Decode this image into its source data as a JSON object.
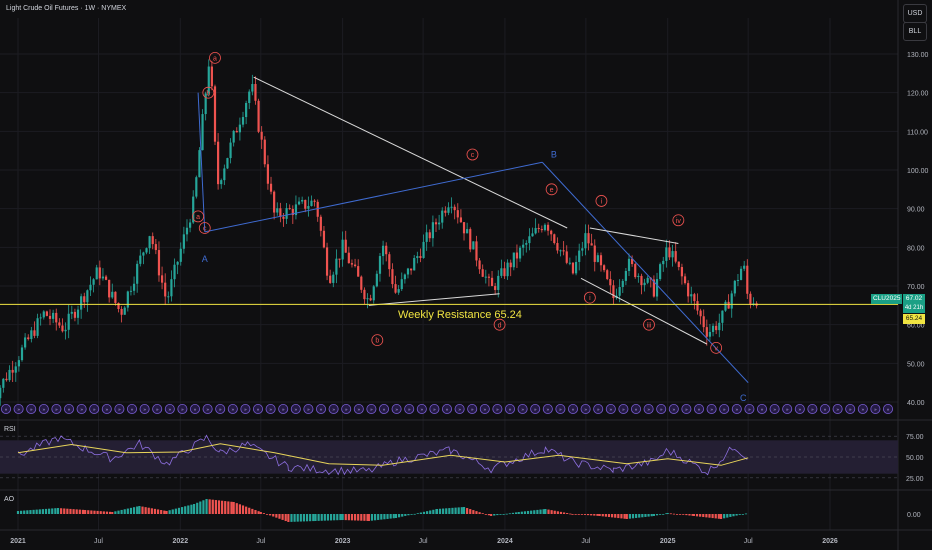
{
  "header": {
    "title": "Light Crude Oil Futures · 1W · NYMEX"
  },
  "controls": {
    "currency": "USD",
    "unit": "BLL"
  },
  "colors": {
    "background": "#0f0f11",
    "up": "#26a69a",
    "down": "#ef5350",
    "wave_blue": "#3f6bd1",
    "wave_white": "#d9d9d9",
    "resistance": "#f0e442",
    "rsi_line": "#8d6fe0",
    "rsi_ma": "#e8d55a",
    "rsi_band": "#241f33",
    "event_icon": "#7b5fd6",
    "price_tag": "#1aa085"
  },
  "price_tags": {
    "symbol": "CLU2025",
    "last_price": "67.02",
    "countdown": "4d 21h",
    "resistance": "65.24"
  },
  "annotation": {
    "resistance_label": "Weekly Resistance 65.24"
  },
  "chart_data": {
    "type": "candlestick",
    "title": "Light Crude Oil Futures · 1W · NYMEX",
    "ylim": [
      40,
      135
    ],
    "y_ticks": [
      "130.00",
      "120.00",
      "110.00",
      "100.00",
      "90.00",
      "80.00",
      "70.00",
      "60.00",
      "50.00",
      "40.00"
    ],
    "x_ticks": [
      "2021",
      "Jul",
      "2022",
      "Jul",
      "2023",
      "Jul",
      "2024",
      "Jul",
      "2025",
      "Jul",
      "2026"
    ],
    "x_tick_dates": [
      "2021-01",
      "2021-07",
      "2022-01",
      "2022-07",
      "2023-01",
      "2023-07",
      "2024-01",
      "2024-07",
      "2025-01",
      "2025-07",
      "2026-01"
    ],
    "price_path": [
      [
        "2020-11",
        40
      ],
      [
        "2021-03",
        63
      ],
      [
        "2021-04-15",
        59
      ],
      [
        "2021-07",
        74
      ],
      [
        "2021-08-20",
        63
      ],
      [
        "2021-10-25",
        84
      ],
      [
        "2021-12",
        66
      ],
      [
        "2022-02",
        92
      ],
      [
        "2022-03-08",
        130
      ],
      [
        "2022-03-25",
        96
      ],
      [
        "2022-06-10",
        122
      ],
      [
        "2022-08",
        88
      ],
      [
        "2022-11",
        92
      ],
      [
        "2022-12",
        72
      ],
      [
        "2023-01",
        80
      ],
      [
        "2023-03",
        66
      ],
      [
        "2023-04",
        81
      ],
      [
        "2023-05",
        68
      ],
      [
        "2023-09",
        93
      ],
      [
        "2023-12",
        69
      ],
      [
        "2024-01",
        74
      ],
      [
        "2024-04",
        87
      ],
      [
        "2024-06",
        73
      ],
      [
        "2024-07",
        83
      ],
      [
        "2024-09",
        67
      ],
      [
        "2024-10",
        76
      ],
      [
        "2024-12",
        69
      ],
      [
        "2025-01",
        80
      ],
      [
        "2025-04",
        58
      ],
      [
        "2025-05",
        61
      ],
      [
        "2025-06-20",
        76
      ],
      [
        "2025-07",
        66
      ],
      [
        "2025-07-25",
        67
      ]
    ],
    "wave_labels": [
      {
        "text": "a",
        "date": "2022-03-20",
        "price": 129,
        "color": "red"
      },
      {
        "text": "b",
        "date": "2022-03-05",
        "price": 120,
        "color": "red"
      },
      {
        "text": "a",
        "date": "2022-02-10",
        "price": 88,
        "color": "red"
      },
      {
        "text": "c",
        "date": "2022-02-25",
        "price": 85,
        "color": "red"
      },
      {
        "text": "A",
        "date": "2022-02-25",
        "price": 77,
        "color": "blue"
      },
      {
        "text": "c",
        "date": "2023-10-20",
        "price": 104,
        "color": "red"
      },
      {
        "text": "B",
        "date": "2024-04-20",
        "price": 104,
        "color": "blue"
      },
      {
        "text": "e",
        "date": "2024-04-15",
        "price": 95,
        "color": "red"
      },
      {
        "text": "i",
        "date": "2024-08-05",
        "price": 92,
        "color": "red"
      },
      {
        "text": "iv",
        "date": "2025-01-25",
        "price": 87,
        "color": "red"
      },
      {
        "text": "i",
        "date": "2024-07-10",
        "price": 67,
        "color": "red"
      },
      {
        "text": "iii",
        "date": "2024-11-20",
        "price": 60,
        "color": "red"
      },
      {
        "text": "b",
        "date": "2023-03-20",
        "price": 56,
        "color": "red"
      },
      {
        "text": "d",
        "date": "2023-12-20",
        "price": 60,
        "color": "red"
      },
      {
        "text": "v",
        "date": "2025-04-20",
        "price": 54,
        "color": "red"
      },
      {
        "text": "C",
        "date": "2025-06-20",
        "price": 41,
        "color": "blue"
      }
    ],
    "trendlines": [
      {
        "color": "white",
        "from": [
          "2022-06-15",
          124
        ],
        "to": [
          "2024-05-20",
          85
        ]
      },
      {
        "color": "blue",
        "from": [
          "2022-02-25",
          84
        ],
        "to": [
          "2024-03-25",
          102
        ]
      },
      {
        "color": "blue",
        "from": [
          "2022-02-25",
          84
        ],
        "to": [
          "2022-02-10",
          120
        ]
      },
      {
        "color": "blue",
        "from": [
          "2024-03-25",
          102
        ],
        "to": [
          "2025-07-01",
          45
        ]
      },
      {
        "color": "white",
        "from": [
          "2024-07-10",
          85
        ],
        "to": [
          "2025-01-25",
          81
        ]
      },
      {
        "color": "white",
        "from": [
          "2024-06-20",
          72
        ],
        "to": [
          "2025-03-30",
          55
        ]
      },
      {
        "color": "white",
        "from": [
          "2023-03-01",
          65
        ],
        "to": [
          "2023-12-20",
          68
        ]
      }
    ],
    "resistance_level": 65.24,
    "rsi": {
      "label": "RSI",
      "ylim": [
        20,
        80
      ],
      "levels": [
        {
          "label": "75.00",
          "value": 75
        },
        {
          "label": "50.00",
          "value": 50
        },
        {
          "label": "25.00",
          "value": 25
        }
      ],
      "bands": [
        70,
        30
      ],
      "path": [
        [
          "2021-01",
          52
        ],
        [
          "2021-04",
          73
        ],
        [
          "2021-06",
          60
        ],
        [
          "2021-08",
          48
        ],
        [
          "2021-10",
          66
        ],
        [
          "2021-12",
          42
        ],
        [
          "2022-03",
          73
        ],
        [
          "2022-04",
          55
        ],
        [
          "2022-06",
          65
        ],
        [
          "2022-09",
          38
        ],
        [
          "2022-12",
          34
        ],
        [
          "2023-03",
          33
        ],
        [
          "2023-05",
          45
        ],
        [
          "2023-09",
          58
        ],
        [
          "2023-12",
          36
        ],
        [
          "2024-04",
          60
        ],
        [
          "2024-06",
          44
        ],
        [
          "2024-09",
          34
        ],
        [
          "2024-12",
          45
        ],
        [
          "2025-01",
          58
        ],
        [
          "2025-04",
          32
        ],
        [
          "2025-06",
          63
        ],
        [
          "2025-07",
          48
        ]
      ],
      "ma_path": [
        [
          "2021-01",
          55
        ],
        [
          "2021-05",
          65
        ],
        [
          "2021-09",
          55
        ],
        [
          "2022-01",
          56
        ],
        [
          "2022-04",
          66
        ],
        [
          "2022-08",
          55
        ],
        [
          "2022-12",
          42
        ],
        [
          "2023-04",
          40
        ],
        [
          "2023-09",
          52
        ],
        [
          "2024-01",
          44
        ],
        [
          "2024-05",
          52
        ],
        [
          "2024-10",
          42
        ],
        [
          "2025-01",
          48
        ],
        [
          "2025-05",
          40
        ],
        [
          "2025-07",
          49
        ]
      ]
    },
    "ao": {
      "label": "AO",
      "y_tick": "0.00",
      "bars": [
        [
          "2021-01",
          3
        ],
        [
          "2021-04",
          6
        ],
        [
          "2021-06",
          4
        ],
        [
          "2021-08",
          2
        ],
        [
          "2021-10",
          8
        ],
        [
          "2021-12",
          3
        ],
        [
          "2022-02",
          10
        ],
        [
          "2022-03",
          15
        ],
        [
          "2022-05",
          12
        ],
        [
          "2022-07",
          2
        ],
        [
          "2022-09",
          -8
        ],
        [
          "2022-11",
          -7
        ],
        [
          "2023-01",
          -6
        ],
        [
          "2023-03",
          -7
        ],
        [
          "2023-05",
          -4
        ],
        [
          "2023-08",
          5
        ],
        [
          "2023-10",
          7
        ],
        [
          "2023-12",
          -2
        ],
        [
          "2024-02",
          2
        ],
        [
          "2024-04",
          5
        ],
        [
          "2024-06",
          0
        ],
        [
          "2024-08",
          -2
        ],
        [
          "2024-10",
          -5
        ],
        [
          "2024-12",
          -2
        ],
        [
          "2025-01",
          1
        ],
        [
          "2025-03",
          -2
        ],
        [
          "2025-05",
          -5
        ],
        [
          "2025-07",
          1
        ]
      ]
    }
  }
}
